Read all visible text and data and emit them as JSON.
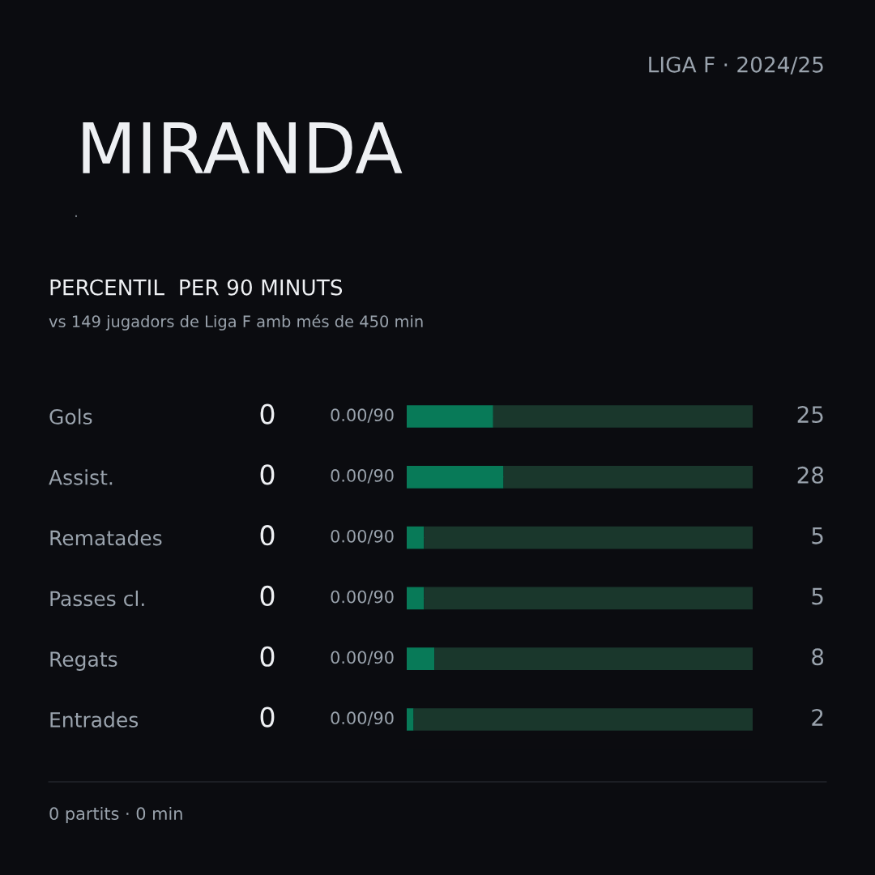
{
  "chart_data": {
    "type": "bar",
    "orientation": "horizontal",
    "stacked": true,
    "title": "MIRANDA",
    "subtitle": "PERCENTIL  PER 90 MINUTS",
    "categories": [
      "Gols",
      "Assist.",
      "Rematades",
      "Passes cl.",
      "Regats",
      "Entrades"
    ],
    "series": [
      {
        "color": "#087a58",
        "values": [
          25,
          28,
          5,
          5,
          8,
          2
        ],
        "value_labels": [
          "25",
          "28",
          "5",
          "5",
          "8",
          "2"
        ]
      },
      {
        "color": "#1a372c",
        "values": [
          75,
          72,
          95,
          95,
          92,
          98
        ]
      }
    ],
    "xlim": [
      0,
      100
    ],
    "tick_labels": "y",
    "annotations": [
      "LIGA F · 2024/25",
      "·",
      "vs 149 jugadors de Liga F amb més de 450 min",
      "0",
      "0.00/90",
      "0",
      "0.00/90",
      "0",
      "0.00/90",
      "0",
      "0.00/90",
      "0",
      "0.00/90",
      "0",
      "0.00/90",
      "0 partits · 0 min"
    ]
  }
}
